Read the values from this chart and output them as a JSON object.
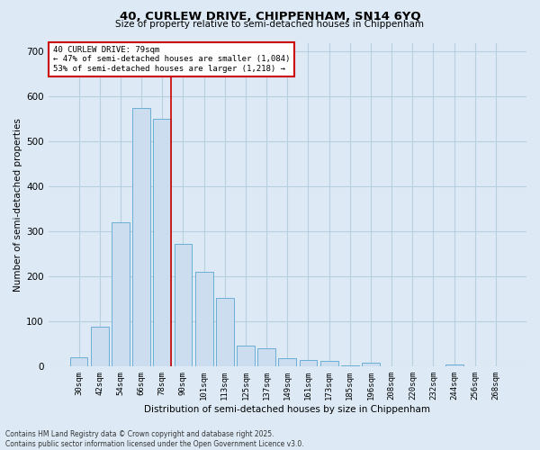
{
  "title_line1": "40, CURLEW DRIVE, CHIPPENHAM, SN14 6YQ",
  "title_line2": "Size of property relative to semi-detached houses in Chippenham",
  "xlabel": "Distribution of semi-detached houses by size in Chippenham",
  "ylabel": "Number of semi-detached properties",
  "categories": [
    "30sqm",
    "42sqm",
    "54sqm",
    "66sqm",
    "78sqm",
    "90sqm",
    "101sqm",
    "113sqm",
    "125sqm",
    "137sqm",
    "149sqm",
    "161sqm",
    "173sqm",
    "185sqm",
    "196sqm",
    "208sqm",
    "220sqm",
    "232sqm",
    "244sqm",
    "256sqm",
    "268sqm"
  ],
  "values": [
    20,
    88,
    320,
    575,
    550,
    272,
    210,
    152,
    46,
    40,
    18,
    15,
    12,
    3,
    8,
    0,
    0,
    0,
    4,
    0,
    0
  ],
  "bar_color": "#ccddf0",
  "bar_edge_color": "#6baed6",
  "grid_color": "#b8cfe0",
  "bg_color": "#ddeaf5",
  "red_line_index": 4,
  "annotation_line1": "40 CURLEW DRIVE: 79sqm",
  "annotation_line2": "← 47% of semi-detached houses are smaller (1,084)",
  "annotation_line3": "53% of semi-detached houses are larger (1,218) →",
  "annotation_box_color": "#ffffff",
  "annotation_border_color": "#cc0000",
  "property_line_color": "#cc0000",
  "footer_line1": "Contains HM Land Registry data © Crown copyright and database right 2025.",
  "footer_line2": "Contains public sector information licensed under the Open Government Licence v3.0.",
  "ylim": [
    0,
    720
  ],
  "yticks": [
    0,
    100,
    200,
    300,
    400,
    500,
    600,
    700
  ]
}
